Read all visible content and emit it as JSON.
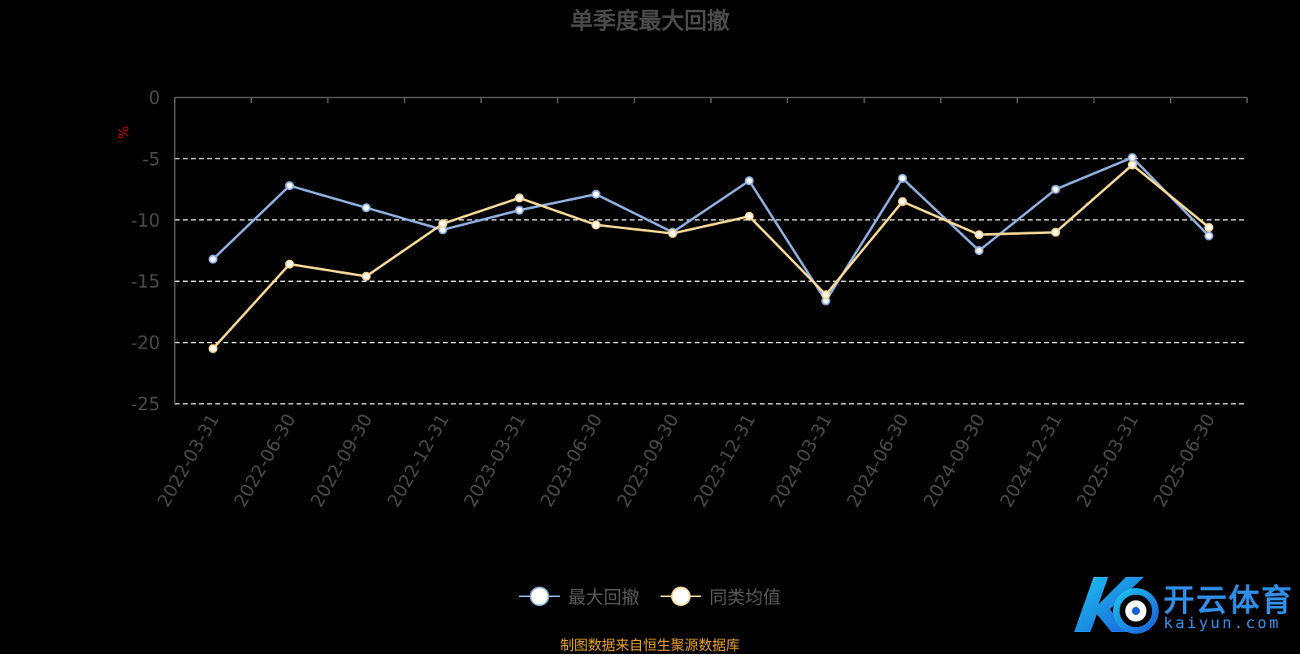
{
  "source_note": "制图数据来自恒生聚源数据库",
  "logo": {
    "name": "开云体育",
    "domain": "kaiyun.com"
  },
  "chart_data": {
    "type": "line",
    "title": "单季度最大回撤",
    "ylabel": "%",
    "ylabel_color": "#cc0000",
    "ylim": [
      -25,
      0
    ],
    "yticks": [
      0,
      -5,
      -10,
      -15,
      -20,
      -25
    ],
    "grid": true,
    "legend_position": "bottom-center",
    "categories": [
      "2022-03-31",
      "2022-06-30",
      "2022-09-30",
      "2022-12-31",
      "2023-03-31",
      "2023-06-30",
      "2023-09-30",
      "2023-12-31",
      "2024-03-31",
      "2024-06-30",
      "2024-09-30",
      "2024-12-31",
      "2025-03-31",
      "2025-06-30"
    ],
    "series": [
      {
        "name": "最大回撤",
        "color": "#8fb0e0",
        "values": [
          -13.2,
          -7.2,
          -9.0,
          -10.8,
          -9.2,
          -7.9,
          -11.0,
          -6.8,
          -16.6,
          -6.6,
          -12.5,
          -7.5,
          -4.9,
          -11.3
        ]
      },
      {
        "name": "同类均值",
        "color": "#f8d898",
        "values": [
          -20.5,
          -13.6,
          -14.6,
          -10.3,
          -8.2,
          -10.4,
          -11.1,
          -9.7,
          -16.1,
          -8.5,
          -11.2,
          -11.0,
          -5.5,
          -10.6
        ]
      }
    ]
  }
}
